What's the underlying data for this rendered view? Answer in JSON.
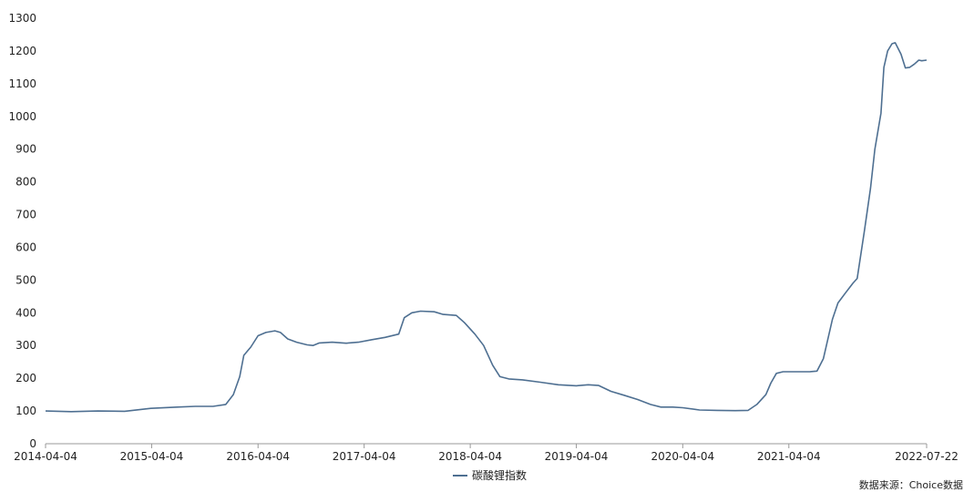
{
  "chart_data": {
    "type": "line",
    "x_tick_labels": [
      "2014-04-04",
      "2015-04-04",
      "2016-04-04",
      "2017-04-04",
      "2018-04-04",
      "2019-04-04",
      "2020-04-04",
      "2021-04-04",
      "2022-07-22"
    ],
    "x_tick_values": [
      "2014-04-04",
      "2015-04-04",
      "2016-04-04",
      "2017-04-04",
      "2018-04-04",
      "2019-04-04",
      "2020-04-04",
      "2021-04-04",
      "2022-07-22"
    ],
    "xlim": [
      "2014-04-04",
      "2022-07-22"
    ],
    "ylim": [
      0,
      1300
    ],
    "y_ticks": [
      0,
      100,
      200,
      300,
      400,
      500,
      600,
      700,
      800,
      900,
      1000,
      1100,
      1200,
      1300
    ],
    "grid": false,
    "legend_position": "bottom-center",
    "series": [
      {
        "name": "碳酸锂指数",
        "color": "#4e6f91",
        "points": [
          [
            "2014-04-04",
            100
          ],
          [
            "2014-07-01",
            98
          ],
          [
            "2014-10-01",
            100
          ],
          [
            "2015-01-01",
            99
          ],
          [
            "2015-04-01",
            108
          ],
          [
            "2015-07-01",
            112
          ],
          [
            "2015-09-01",
            114
          ],
          [
            "2015-11-01",
            114
          ],
          [
            "2015-12-15",
            120
          ],
          [
            "2016-01-10",
            150
          ],
          [
            "2016-02-01",
            205
          ],
          [
            "2016-02-15",
            270
          ],
          [
            "2016-03-10",
            295
          ],
          [
            "2016-04-04",
            330
          ],
          [
            "2016-05-01",
            340
          ],
          [
            "2016-06-01",
            345
          ],
          [
            "2016-06-20",
            340
          ],
          [
            "2016-07-15",
            320
          ],
          [
            "2016-08-15",
            310
          ],
          [
            "2016-09-20",
            302
          ],
          [
            "2016-10-10",
            300
          ],
          [
            "2016-11-01",
            308
          ],
          [
            "2016-12-15",
            310
          ],
          [
            "2017-02-01",
            307
          ],
          [
            "2017-03-15",
            310
          ],
          [
            "2017-05-01",
            318
          ],
          [
            "2017-06-15",
            325
          ],
          [
            "2017-08-01",
            335
          ],
          [
            "2017-08-20",
            385
          ],
          [
            "2017-09-15",
            400
          ],
          [
            "2017-10-15",
            405
          ],
          [
            "2017-12-01",
            403
          ],
          [
            "2018-01-01",
            395
          ],
          [
            "2018-02-15",
            392
          ],
          [
            "2018-03-15",
            370
          ],
          [
            "2018-04-20",
            335
          ],
          [
            "2018-05-20",
            300
          ],
          [
            "2018-06-20",
            240
          ],
          [
            "2018-07-15",
            205
          ],
          [
            "2018-08-15",
            198
          ],
          [
            "2018-10-01",
            195
          ],
          [
            "2018-12-01",
            188
          ],
          [
            "2019-02-01",
            180
          ],
          [
            "2019-04-04",
            177
          ],
          [
            "2019-05-15",
            180
          ],
          [
            "2019-06-20",
            178
          ],
          [
            "2019-08-01",
            160
          ],
          [
            "2019-09-15",
            148
          ],
          [
            "2019-11-01",
            135
          ],
          [
            "2019-12-15",
            120
          ],
          [
            "2020-01-20",
            112
          ],
          [
            "2020-03-01",
            112
          ],
          [
            "2020-04-04",
            110
          ],
          [
            "2020-06-01",
            103
          ],
          [
            "2020-08-01",
            102
          ],
          [
            "2020-10-01",
            101
          ],
          [
            "2020-11-15",
            102
          ],
          [
            "2020-12-15",
            120
          ],
          [
            "2021-01-15",
            150
          ],
          [
            "2021-02-01",
            185
          ],
          [
            "2021-02-20",
            215
          ],
          [
            "2021-03-15",
            220
          ],
          [
            "2021-06-15",
            220
          ],
          [
            "2021-07-10",
            222
          ],
          [
            "2021-08-01",
            260
          ],
          [
            "2021-09-01",
            380
          ],
          [
            "2021-09-20",
            430
          ],
          [
            "2021-10-15",
            460
          ],
          [
            "2021-11-10",
            490
          ],
          [
            "2021-11-25",
            505
          ],
          [
            "2021-12-20",
            650
          ],
          [
            "2022-01-10",
            780
          ],
          [
            "2022-01-25",
            900
          ],
          [
            "2022-02-15",
            1010
          ],
          [
            "2022-02-25",
            1150
          ],
          [
            "2022-03-10",
            1200
          ],
          [
            "2022-03-25",
            1222
          ],
          [
            "2022-04-05",
            1225
          ],
          [
            "2022-04-25",
            1190
          ],
          [
            "2022-05-10",
            1148
          ],
          [
            "2022-05-25",
            1150
          ],
          [
            "2022-06-10",
            1160
          ],
          [
            "2022-06-25",
            1172
          ],
          [
            "2022-07-05",
            1170
          ],
          [
            "2022-07-22",
            1172
          ]
        ]
      }
    ]
  },
  "source_label": "数据来源：Choice数据"
}
